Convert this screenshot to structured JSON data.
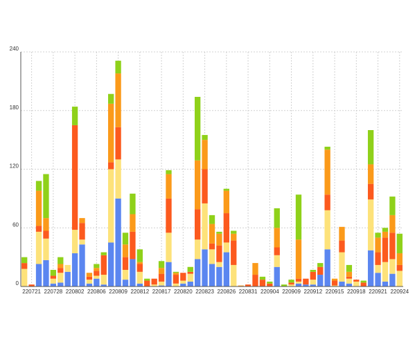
{
  "chart_data": {
    "type": "stacked_bar",
    "categories": [
      null,
      "220721",
      null,
      null,
      "220728",
      null,
      null,
      "220802",
      null,
      null,
      "220806",
      null,
      null,
      "220809",
      null,
      null,
      "220812",
      null,
      null,
      "220817",
      null,
      null,
      "220820",
      null,
      null,
      "220823",
      null,
      null,
      "220826",
      null,
      null,
      "220831",
      null,
      null,
      "220904",
      null,
      null,
      "220909",
      null,
      null,
      "220912",
      null,
      null,
      "220915",
      null,
      null,
      "220918",
      null,
      null,
      "220921",
      null,
      null,
      "220924"
    ],
    "series": [
      {
        "color": "#5b86f0",
        "values": [
          0,
          0,
          23,
          27,
          3,
          4,
          15,
          34,
          43,
          3,
          8,
          2,
          45,
          90,
          7,
          28,
          3,
          0,
          0,
          1,
          25,
          0,
          3,
          5,
          28,
          38,
          23,
          20,
          35,
          0,
          0,
          0,
          0,
          0,
          0,
          20,
          0,
          0,
          3,
          2,
          2,
          12,
          38,
          0,
          5,
          3,
          0,
          0,
          37,
          14,
          5,
          13,
          0
        ]
      },
      {
        "color": "#fde27a",
        "values": [
          18,
          0,
          33,
          22,
          5,
          10,
          7,
          24,
          5,
          4,
          3,
          10,
          75,
          40,
          10,
          0,
          12,
          0,
          2,
          4,
          30,
          3,
          3,
          8,
          20,
          47,
          15,
          5,
          10,
          22,
          0,
          0,
          0,
          0,
          0,
          12,
          0,
          2,
          2,
          0,
          5,
          0,
          40,
          1,
          30,
          5,
          5,
          0,
          52,
          8,
          20,
          15,
          16
        ]
      },
      {
        "color": "#fc5a1e",
        "values": [
          6,
          2,
          6,
          8,
          3,
          5,
          0,
          107,
          17,
          3,
          5,
          20,
          7,
          33,
          13,
          28,
          8,
          6,
          6,
          8,
          35,
          9,
          8,
          2,
          31,
          35,
          6,
          17,
          30,
          25,
          0,
          2,
          12,
          7,
          3,
          8,
          0,
          2,
          3,
          6,
          8,
          8,
          16,
          5,
          12,
          2,
          2,
          4,
          16,
          13,
          25,
          27,
          6
        ]
      },
      {
        "color": "#fb9a1a",
        "values": [
          0,
          0,
          36,
          13,
          0,
          4,
          0,
          0,
          5,
          4,
          3,
          0,
          60,
          55,
          13,
          18,
          2,
          0,
          0,
          6,
          25,
          2,
          0,
          0,
          50,
          30,
          20,
          12,
          23,
          7,
          1,
          0,
          12,
          0,
          0,
          20,
          0,
          0,
          40,
          0,
          0,
          0,
          46,
          2,
          14,
          5,
          0,
          0,
          20,
          15,
          6,
          18,
          12
        ]
      },
      {
        "color": "#8fd11a",
        "values": [
          6,
          0,
          10,
          45,
          6,
          7,
          0,
          19,
          0,
          0,
          4,
          3,
          10,
          13,
          12,
          21,
          13,
          2,
          0,
          7,
          4,
          1,
          0,
          5,
          65,
          5,
          9,
          2,
          2,
          3,
          0,
          0,
          0,
          3,
          2,
          20,
          2,
          3,
          46,
          0,
          2,
          4,
          3,
          0,
          0,
          7,
          0,
          2,
          35,
          5,
          4,
          19,
          20
        ]
      }
    ],
    "ylim": [
      0,
      240
    ],
    "yticks": [
      0,
      60,
      120,
      180,
      240
    ],
    "grid": true
  }
}
